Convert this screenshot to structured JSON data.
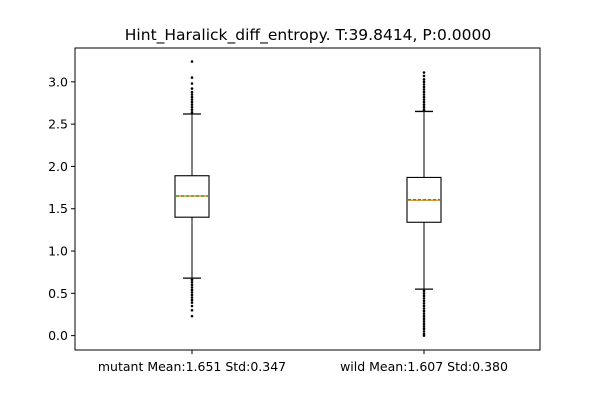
{
  "chart_data": {
    "type": "boxplot",
    "title": "Hint_Haralick_diff_entropy. T:39.8414, P:0.0000",
    "xlabel": "",
    "ylabel": "",
    "ylim": [
      -0.17,
      3.4
    ],
    "yticks": [
      0.0,
      0.5,
      1.0,
      1.5,
      2.0,
      2.5,
      3.0
    ],
    "ytick_labels": [
      "0.0",
      "0.5",
      "1.0",
      "1.5",
      "2.0",
      "2.5",
      "3.0"
    ],
    "grid": false,
    "colors": {
      "box": "#000000",
      "median": "#ff7f0e",
      "mean": "#2ca02c",
      "flier": "#000000"
    },
    "categories": [
      {
        "label": "mutant Mean:1.651 Std:0.347",
        "q1": 1.4,
        "median": 1.65,
        "mean": 1.651,
        "q3": 1.89,
        "whisker_low": 0.68,
        "whisker_high": 2.62,
        "outliers_low": [
          0.66,
          0.63,
          0.6,
          0.57,
          0.54,
          0.51,
          0.48,
          0.45,
          0.42,
          0.39,
          0.35,
          0.3,
          0.23
        ],
        "outliers_high": [
          2.64,
          2.67,
          2.7,
          2.73,
          2.76,
          2.79,
          2.82,
          2.85,
          2.88,
          2.92,
          2.98,
          3.05,
          3.24
        ]
      },
      {
        "label": "wild Mean:1.607 Std:0.380",
        "q1": 1.34,
        "median": 1.6,
        "mean": 1.607,
        "q3": 1.87,
        "whisker_low": 0.55,
        "whisker_high": 2.65,
        "outliers_low": [
          0.53,
          0.5,
          0.47,
          0.44,
          0.41,
          0.38,
          0.35,
          0.32,
          0.29,
          0.26,
          0.23,
          0.2,
          0.17,
          0.14,
          0.11,
          0.08,
          0.05,
          0.02,
          0.0
        ],
        "outliers_high": [
          2.67,
          2.7,
          2.73,
          2.76,
          2.79,
          2.82,
          2.85,
          2.88,
          2.91,
          2.94,
          2.97,
          3.0,
          3.03,
          3.07,
          3.11
        ]
      }
    ]
  }
}
